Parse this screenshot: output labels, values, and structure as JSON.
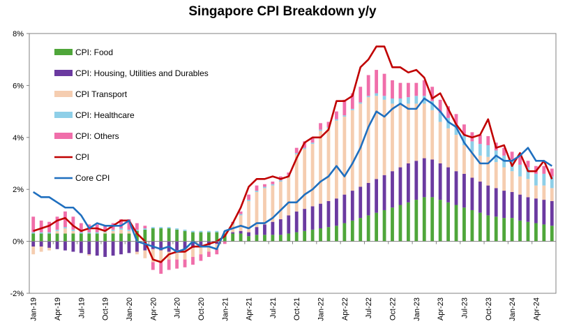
{
  "chart_data": {
    "type": "bar",
    "title": "Singapore CPI Breakdown y/y",
    "xlabel": "",
    "ylabel": "",
    "ylim": [
      -2,
      8
    ],
    "yticks": [
      "-2%",
      "0%",
      "2%",
      "4%",
      "6%",
      "8%"
    ],
    "ytick_values": [
      -2,
      0,
      2,
      4,
      6,
      8
    ],
    "grid": false,
    "legend_position": "top-left",
    "x_tick_labels": [
      "Jan-19",
      "Apr-19",
      "Jul-19",
      "Oct-19",
      "Jan-20",
      "Apr-20",
      "Jul-20",
      "Oct-20",
      "Jan-21",
      "Apr-21",
      "Jul-21",
      "Oct-21",
      "Jan-22",
      "Apr-22",
      "Jul-22",
      "Oct-22",
      "Jan-23",
      "Apr-23",
      "Jul-23",
      "Oct-23",
      "Jan-24",
      "Apr-24"
    ],
    "months": [
      "2019-01",
      "2019-02",
      "2019-03",
      "2019-04",
      "2019-05",
      "2019-06",
      "2019-07",
      "2019-08",
      "2019-09",
      "2019-10",
      "2019-11",
      "2019-12",
      "2020-01",
      "2020-02",
      "2020-03",
      "2020-04",
      "2020-05",
      "2020-06",
      "2020-07",
      "2020-08",
      "2020-09",
      "2020-10",
      "2020-11",
      "2020-12",
      "2021-01",
      "2021-02",
      "2021-03",
      "2021-04",
      "2021-05",
      "2021-06",
      "2021-07",
      "2021-08",
      "2021-09",
      "2021-10",
      "2021-11",
      "2021-12",
      "2022-01",
      "2022-02",
      "2022-03",
      "2022-04",
      "2022-05",
      "2022-06",
      "2022-07",
      "2022-08",
      "2022-09",
      "2022-10",
      "2022-11",
      "2022-12",
      "2023-01",
      "2023-02",
      "2023-03",
      "2023-04",
      "2023-05",
      "2023-06",
      "2023-07",
      "2023-08",
      "2023-09",
      "2023-10",
      "2023-11",
      "2023-12",
      "2024-01",
      "2024-02",
      "2024-03",
      "2024-04",
      "2024-05",
      "2024-06"
    ],
    "series": [
      {
        "name": "CPI: Food",
        "kind": "bar",
        "color": "#4fa63a",
        "values": [
          0.3,
          0.3,
          0.3,
          0.3,
          0.3,
          0.3,
          0.3,
          0.3,
          0.3,
          0.3,
          0.3,
          0.3,
          0.3,
          0.4,
          0.45,
          0.5,
          0.5,
          0.5,
          0.45,
          0.4,
          0.35,
          0.35,
          0.35,
          0.35,
          0.3,
          0.3,
          0.3,
          0.2,
          0.25,
          0.25,
          0.25,
          0.25,
          0.3,
          0.35,
          0.4,
          0.45,
          0.5,
          0.55,
          0.6,
          0.7,
          0.8,
          0.9,
          1.0,
          1.1,
          1.2,
          1.3,
          1.4,
          1.5,
          1.6,
          1.7,
          1.7,
          1.6,
          1.5,
          1.4,
          1.3,
          1.2,
          1.1,
          1.0,
          0.95,
          0.9,
          0.9,
          0.8,
          0.75,
          0.7,
          0.65,
          0.6
        ]
      },
      {
        "name": "CPI: Housing, Utilities and Durables",
        "kind": "bar",
        "color": "#6b3aa0",
        "values": [
          -0.2,
          -0.2,
          -0.25,
          -0.3,
          -0.35,
          -0.4,
          -0.45,
          -0.5,
          -0.55,
          -0.6,
          -0.55,
          -0.5,
          -0.45,
          -0.4,
          -0.35,
          -0.3,
          -0.35,
          -0.4,
          -0.35,
          -0.3,
          -0.25,
          -0.2,
          -0.15,
          -0.1,
          0.0,
          0.05,
          0.1,
          0.15,
          0.3,
          0.4,
          0.5,
          0.6,
          0.7,
          0.8,
          0.85,
          0.9,
          0.95,
          1.0,
          1.05,
          1.1,
          1.15,
          1.2,
          1.25,
          1.3,
          1.35,
          1.4,
          1.45,
          1.5,
          1.5,
          1.5,
          1.45,
          1.4,
          1.35,
          1.3,
          1.3,
          1.25,
          1.2,
          1.15,
          1.1,
          1.05,
          1.0,
          1.0,
          0.95,
          0.95,
          0.95,
          0.95
        ]
      },
      {
        "name": "CPI Transport",
        "kind": "bar",
        "color": "#f5cdb0",
        "values": [
          -0.3,
          -0.2,
          -0.1,
          0.1,
          0.2,
          0.1,
          0.0,
          -0.05,
          0.0,
          0.05,
          0.1,
          0.15,
          0.1,
          -0.1,
          -0.3,
          -0.5,
          -0.4,
          -0.3,
          -0.35,
          -0.4,
          -0.35,
          -0.3,
          -0.25,
          -0.2,
          0.05,
          0.3,
          0.6,
          1.2,
          1.35,
          1.4,
          1.4,
          1.45,
          1.5,
          2.2,
          2.3,
          2.4,
          2.8,
          2.8,
          3.0,
          3.0,
          3.1,
          3.2,
          3.3,
          3.2,
          2.9,
          2.6,
          2.4,
          2.3,
          2.2,
          2.1,
          1.9,
          1.6,
          1.5,
          1.4,
          1.1,
          1.0,
          1.0,
          1.1,
          1.0,
          0.9,
          0.8,
          0.7,
          0.7,
          0.5,
          0.55,
          0.5
        ]
      },
      {
        "name": "CPI: Healthcare",
        "kind": "bar",
        "color": "#8ecfe8",
        "values": [
          0.05,
          0.05,
          0.05,
          0.05,
          0.05,
          0.05,
          0.05,
          0.05,
          0.05,
          0.05,
          0.05,
          0.05,
          0.05,
          0.05,
          0.05,
          0.05,
          0.05,
          0.05,
          0.05,
          0.05,
          0.05,
          0.05,
          0.05,
          0.05,
          0.05,
          0.05,
          0.05,
          0.05,
          0.05,
          0.05,
          0.05,
          0.05,
          0.05,
          0.05,
          0.05,
          0.05,
          0.05,
          0.05,
          0.05,
          0.05,
          0.05,
          0.05,
          0.05,
          0.1,
          0.15,
          0.2,
          0.25,
          0.25,
          0.3,
          0.3,
          0.35,
          0.35,
          0.4,
          0.4,
          0.4,
          0.4,
          0.45,
          0.45,
          0.45,
          0.45,
          0.45,
          0.45,
          0.45,
          0.45,
          0.45,
          0.45
        ]
      },
      {
        "name": "CPI: Others",
        "kind": "bar",
        "color": "#f06eaa",
        "values": [
          0.6,
          0.45,
          0.4,
          0.5,
          0.6,
          0.5,
          0.35,
          0.3,
          0.3,
          0.2,
          0.25,
          0.35,
          0.4,
          0.25,
          0.1,
          -0.3,
          -0.5,
          -0.4,
          -0.35,
          -0.3,
          -0.3,
          -0.25,
          -0.2,
          -0.2,
          -0.1,
          0.05,
          0.1,
          0.2,
          0.2,
          0.1,
          0.1,
          0.15,
          0.1,
          0.2,
          0.25,
          0.2,
          0.25,
          0.2,
          0.3,
          0.6,
          0.6,
          0.6,
          0.8,
          0.9,
          0.85,
          0.7,
          0.6,
          0.55,
          0.5,
          0.6,
          0.55,
          0.5,
          0.45,
          0.4,
          0.4,
          0.35,
          0.35,
          0.35,
          0.3,
          0.3,
          0.3,
          0.3,
          0.25,
          0.3,
          0.3,
          0.3
        ]
      },
      {
        "name": "CPI",
        "kind": "line",
        "color": "#c00000",
        "values": [
          0.4,
          0.5,
          0.6,
          0.8,
          0.9,
          0.6,
          0.4,
          0.5,
          0.5,
          0.4,
          0.6,
          0.8,
          0.8,
          0.3,
          0.0,
          -0.7,
          -0.8,
          -0.5,
          -0.4,
          -0.4,
          -0.2,
          -0.2,
          -0.1,
          0.0,
          0.2,
          0.7,
          1.3,
          2.1,
          2.4,
          2.4,
          2.5,
          2.4,
          2.5,
          3.2,
          3.8,
          4.0,
          4.0,
          4.3,
          5.4,
          5.4,
          5.6,
          6.7,
          7.0,
          7.5,
          7.5,
          6.7,
          6.7,
          6.5,
          6.6,
          6.3,
          5.5,
          5.7,
          5.1,
          4.5,
          4.1,
          4.0,
          4.1,
          4.7,
          3.6,
          3.7,
          2.9,
          3.4,
          2.7,
          2.7,
          3.1,
          2.4
        ]
      },
      {
        "name": "Core CPI",
        "kind": "line",
        "color": "#1f6fbf",
        "values": [
          1.9,
          1.7,
          1.7,
          1.5,
          1.3,
          1.3,
          1.0,
          0.5,
          0.7,
          0.6,
          0.6,
          0.6,
          0.8,
          0.0,
          -0.1,
          -0.2,
          -0.3,
          -0.2,
          -0.4,
          -0.3,
          0.0,
          -0.2,
          -0.2,
          -0.3,
          0.4,
          0.5,
          0.6,
          0.5,
          0.7,
          0.7,
          0.9,
          1.2,
          1.5,
          1.5,
          1.8,
          2.0,
          2.3,
          2.5,
          2.9,
          2.5,
          3.0,
          3.6,
          4.4,
          5.0,
          4.8,
          5.1,
          5.3,
          5.1,
          5.1,
          5.5,
          5.3,
          5.0,
          4.6,
          4.4,
          3.8,
          3.4,
          3.0,
          3.0,
          3.3,
          3.1,
          3.1,
          3.3,
          3.6,
          3.1,
          3.1,
          2.9
        ]
      }
    ]
  }
}
